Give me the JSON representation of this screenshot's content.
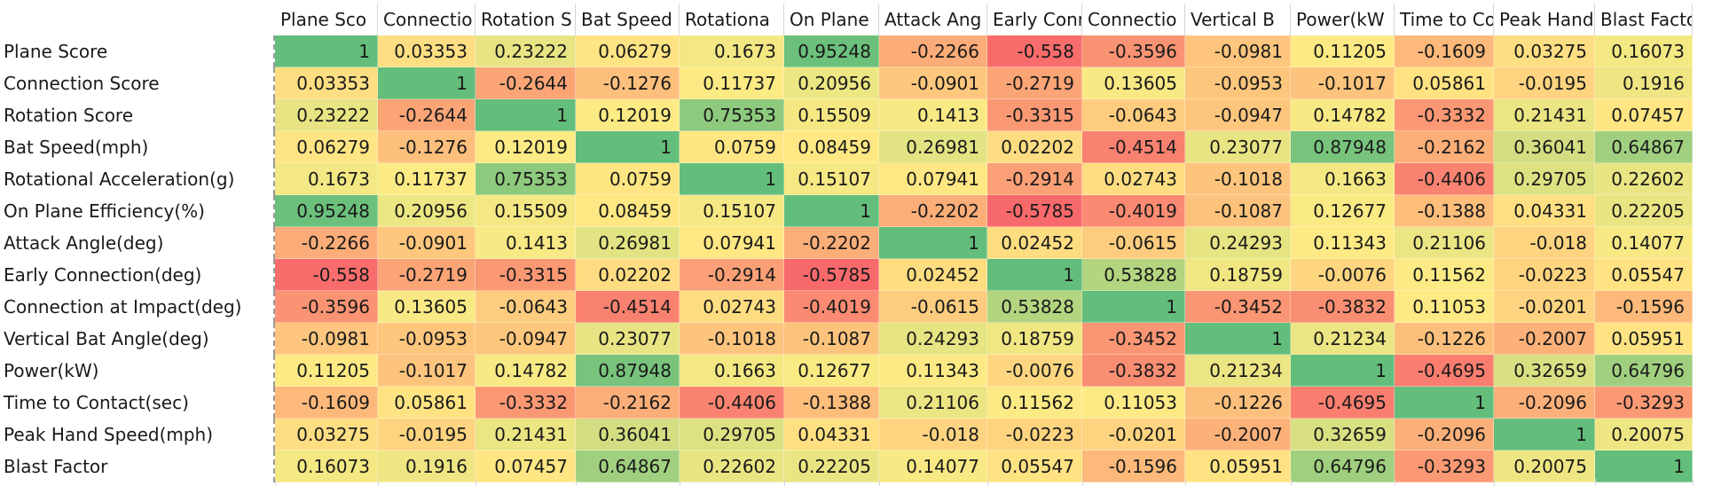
{
  "chart_data": {
    "type": "heatmap",
    "columns": [
      "Plane Sco",
      "Connectio",
      "Rotation S",
      "Bat Speed",
      "Rotationa",
      "On Plane",
      "Attack Ang",
      "Early Conn",
      "Connectio",
      "Vertical B",
      "Power(kW",
      "Time to Co",
      "Peak Hand",
      "Blast Factor"
    ],
    "rows": [
      "Plane Score",
      "Connection Score",
      "Rotation Score",
      "Bat Speed(mph)",
      "Rotational Acceleration(g)",
      "On Plane Efficiency(%)",
      "Attack Angle(deg)",
      "Early Connection(deg)",
      "Connection at Impact(deg)",
      "Vertical Bat Angle(deg)",
      "Power(kW)",
      "Time to Contact(sec)",
      "Peak Hand Speed(mph)",
      "Blast Factor"
    ],
    "values": [
      [
        "1",
        "0.03353",
        "0.23222",
        "0.06279",
        "0.1673",
        "0.95248",
        "-0.2266",
        "-0.558",
        "-0.3596",
        "-0.0981",
        "0.11205",
        "-0.1609",
        "0.03275",
        "0.16073"
      ],
      [
        "0.03353",
        "1",
        "-0.2644",
        "-0.1276",
        "0.11737",
        "0.20956",
        "-0.0901",
        "-0.2719",
        "0.13605",
        "-0.0953",
        "-0.1017",
        "0.05861",
        "-0.0195",
        "0.1916"
      ],
      [
        "0.23222",
        "-0.2644",
        "1",
        "0.12019",
        "0.75353",
        "0.15509",
        "0.1413",
        "-0.3315",
        "-0.0643",
        "-0.0947",
        "0.14782",
        "-0.3332",
        "0.21431",
        "0.07457"
      ],
      [
        "0.06279",
        "-0.1276",
        "0.12019",
        "1",
        "0.0759",
        "0.08459",
        "0.26981",
        "0.02202",
        "-0.4514",
        "0.23077",
        "0.87948",
        "-0.2162",
        "0.36041",
        "0.64867"
      ],
      [
        "0.1673",
        "0.11737",
        "0.75353",
        "0.0759",
        "1",
        "0.15107",
        "0.07941",
        "-0.2914",
        "0.02743",
        "-0.1018",
        "0.1663",
        "-0.4406",
        "0.29705",
        "0.22602"
      ],
      [
        "0.95248",
        "0.20956",
        "0.15509",
        "0.08459",
        "0.15107",
        "1",
        "-0.2202",
        "-0.5785",
        "-0.4019",
        "-0.1087",
        "0.12677",
        "-0.1388",
        "0.04331",
        "0.22205"
      ],
      [
        "-0.2266",
        "-0.0901",
        "0.1413",
        "0.26981",
        "0.07941",
        "-0.2202",
        "1",
        "0.02452",
        "-0.0615",
        "0.24293",
        "0.11343",
        "0.21106",
        "-0.018",
        "0.14077"
      ],
      [
        "-0.558",
        "-0.2719",
        "-0.3315",
        "0.02202",
        "-0.2914",
        "-0.5785",
        "0.02452",
        "1",
        "0.53828",
        "0.18759",
        "-0.0076",
        "0.11562",
        "-0.0223",
        "0.05547"
      ],
      [
        "-0.3596",
        "0.13605",
        "-0.0643",
        "-0.4514",
        "0.02743",
        "-0.4019",
        "-0.0615",
        "0.53828",
        "1",
        "-0.3452",
        "-0.3832",
        "0.11053",
        "-0.0201",
        "-0.1596"
      ],
      [
        "-0.0981",
        "-0.0953",
        "-0.0947",
        "0.23077",
        "-0.1018",
        "-0.1087",
        "0.24293",
        "0.18759",
        "-0.3452",
        "1",
        "0.21234",
        "-0.1226",
        "-0.2007",
        "0.05951"
      ],
      [
        "0.11205",
        "-0.1017",
        "0.14782",
        "0.87948",
        "0.1663",
        "0.12677",
        "0.11343",
        "-0.0076",
        "-0.3832",
        "0.21234",
        "1",
        "-0.4695",
        "0.32659",
        "0.64796"
      ],
      [
        "-0.1609",
        "0.05861",
        "-0.3332",
        "-0.2162",
        "-0.4406",
        "-0.1388",
        "0.21106",
        "0.11562",
        "0.11053",
        "-0.1226",
        "-0.4695",
        "1",
        "-0.2096",
        "-0.3293"
      ],
      [
        "0.03275",
        "-0.0195",
        "0.21431",
        "0.36041",
        "0.29705",
        "0.04331",
        "-0.018",
        "-0.0223",
        "-0.0201",
        "-0.2007",
        "0.32659",
        "-0.2096",
        "1",
        "0.20075"
      ],
      [
        "0.16073",
        "0.1916",
        "0.07457",
        "0.64867",
        "0.22602",
        "0.22205",
        "0.14077",
        "0.05547",
        "-0.1596",
        "0.05951",
        "0.64796",
        "-0.3293",
        "0.20075",
        "1"
      ]
    ],
    "color_scale": {
      "min_value": -0.5785,
      "mid_value": 0.1,
      "max_value": 1,
      "min_color": "#f8696b",
      "mid_color": "#ffeb84",
      "max_color": "#63be7b"
    }
  }
}
